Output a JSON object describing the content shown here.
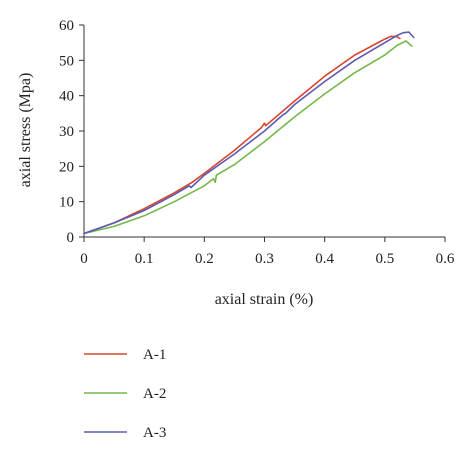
{
  "chart_data": {
    "type": "line",
    "title": "",
    "xlabel": "axial strain (%)",
    "ylabel": "axial stress (Mpa)",
    "xlim": [
      0,
      0.6
    ],
    "ylim": [
      0,
      60
    ],
    "xticks": [
      0,
      0.1,
      0.2,
      0.3,
      0.4,
      0.5,
      0.6
    ],
    "yticks": [
      0,
      10,
      20,
      30,
      40,
      50,
      60
    ],
    "xtick_labels": [
      "0",
      "0.1",
      "0.2",
      "0.3",
      "0.4",
      "0.5",
      "0.6"
    ],
    "ytick_labels": [
      "0",
      "10",
      "20",
      "30",
      "40",
      "50",
      "60"
    ],
    "grid": false,
    "legend_position": "below",
    "series": [
      {
        "name": "A-1",
        "color": "#d9452b",
        "x": [
          0,
          0.05,
          0.1,
          0.15,
          0.18,
          0.2,
          0.25,
          0.295,
          0.3,
          0.302,
          0.35,
          0.4,
          0.45,
          0.5,
          0.51,
          0.52,
          0.525
        ],
        "y": [
          1,
          4,
          8,
          12.5,
          15.5,
          18,
          24.5,
          31,
          32.2,
          31.5,
          38.5,
          45.5,
          51.5,
          56,
          56.8,
          56.7,
          56.2
        ]
      },
      {
        "name": "A-2",
        "color": "#74b84d",
        "x": [
          0,
          0.05,
          0.1,
          0.15,
          0.2,
          0.215,
          0.218,
          0.22,
          0.25,
          0.3,
          0.35,
          0.4,
          0.45,
          0.5,
          0.52,
          0.535,
          0.545
        ],
        "y": [
          1,
          3,
          6,
          10,
          14.5,
          16.5,
          15.5,
          17.5,
          20.5,
          27,
          34,
          40.5,
          46.5,
          51.5,
          54.2,
          55.5,
          54
        ]
      },
      {
        "name": "A-3",
        "color": "#5b5bb5",
        "x": [
          0,
          0.05,
          0.1,
          0.15,
          0.175,
          0.178,
          0.2,
          0.25,
          0.3,
          0.33,
          0.335,
          0.35,
          0.4,
          0.45,
          0.5,
          0.52,
          0.53,
          0.54,
          0.548
        ],
        "y": [
          1,
          4,
          7.5,
          12,
          14.5,
          14,
          17.5,
          23.5,
          30,
          34.5,
          35,
          37.5,
          44,
          50,
          55,
          57,
          57.8,
          58,
          56.5
        ]
      }
    ]
  }
}
